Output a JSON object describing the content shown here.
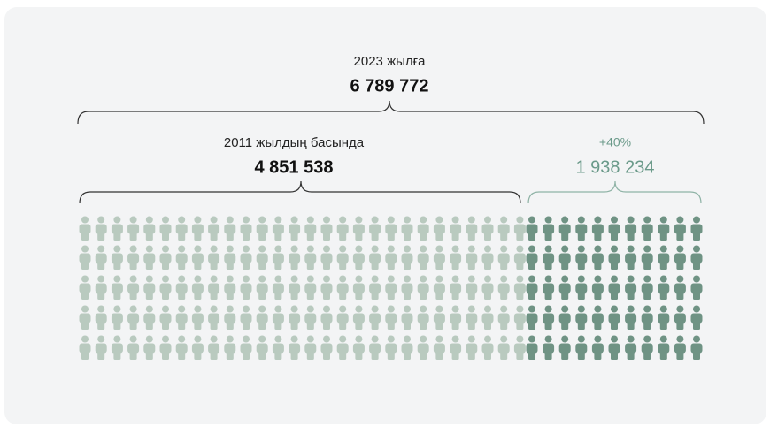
{
  "total": {
    "label": "2023 жылға",
    "value": "6 789 772"
  },
  "base": {
    "label": "2011 жылдың басында",
    "value": "4 851 538"
  },
  "growth": {
    "label": "+40%",
    "value": "1 938 234"
  }
}
